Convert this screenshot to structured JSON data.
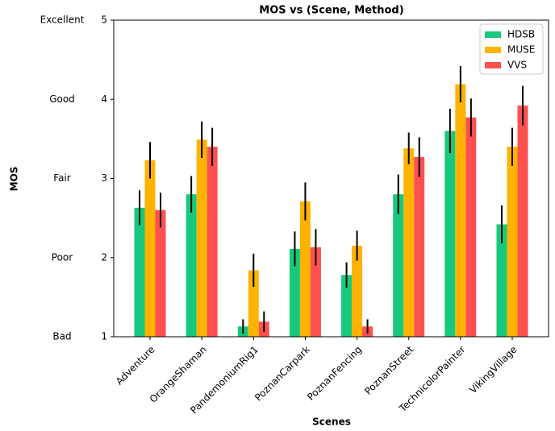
{
  "chart_data": {
    "type": "bar",
    "title": "MOS vs (Scene, Method)",
    "x_label": "Scenes",
    "y_label": "MOS",
    "categories": [
      "Adventure",
      "OrangeShaman",
      "PandemoniumRig1",
      "PoznanCarpark",
      "PoznanFencing",
      "PoznanStreet",
      "TechnicolorPainter",
      "VikingVillage"
    ],
    "series": [
      {
        "name": "HDSB",
        "color": "#17c97c",
        "values": [
          2.63,
          2.8,
          1.13,
          2.11,
          1.78,
          2.8,
          3.6,
          2.42
        ],
        "errors": [
          0.22,
          0.23,
          0.09,
          0.22,
          0.16,
          0.25,
          0.28,
          0.24
        ]
      },
      {
        "name": "MUSE",
        "color": "#ffb300",
        "values": [
          3.23,
          3.49,
          1.84,
          2.71,
          2.15,
          3.38,
          4.19,
          3.4
        ],
        "errors": [
          0.23,
          0.23,
          0.21,
          0.24,
          0.19,
          0.2,
          0.23,
          0.24
        ]
      },
      {
        "name": "VVS",
        "color": "#ff5050",
        "values": [
          2.6,
          3.4,
          1.19,
          2.13,
          1.13,
          3.27,
          3.77,
          3.92
        ],
        "errors": [
          0.22,
          0.24,
          0.13,
          0.23,
          0.09,
          0.25,
          0.24,
          0.25
        ]
      }
    ],
    "ylim": [
      1,
      5
    ],
    "yticks": [
      1,
      2,
      3,
      4,
      5
    ],
    "ytick_quality_labels": [
      "Bad",
      "Poor",
      "Fair",
      "Good",
      "Excellent"
    ],
    "legend": "upper right"
  }
}
